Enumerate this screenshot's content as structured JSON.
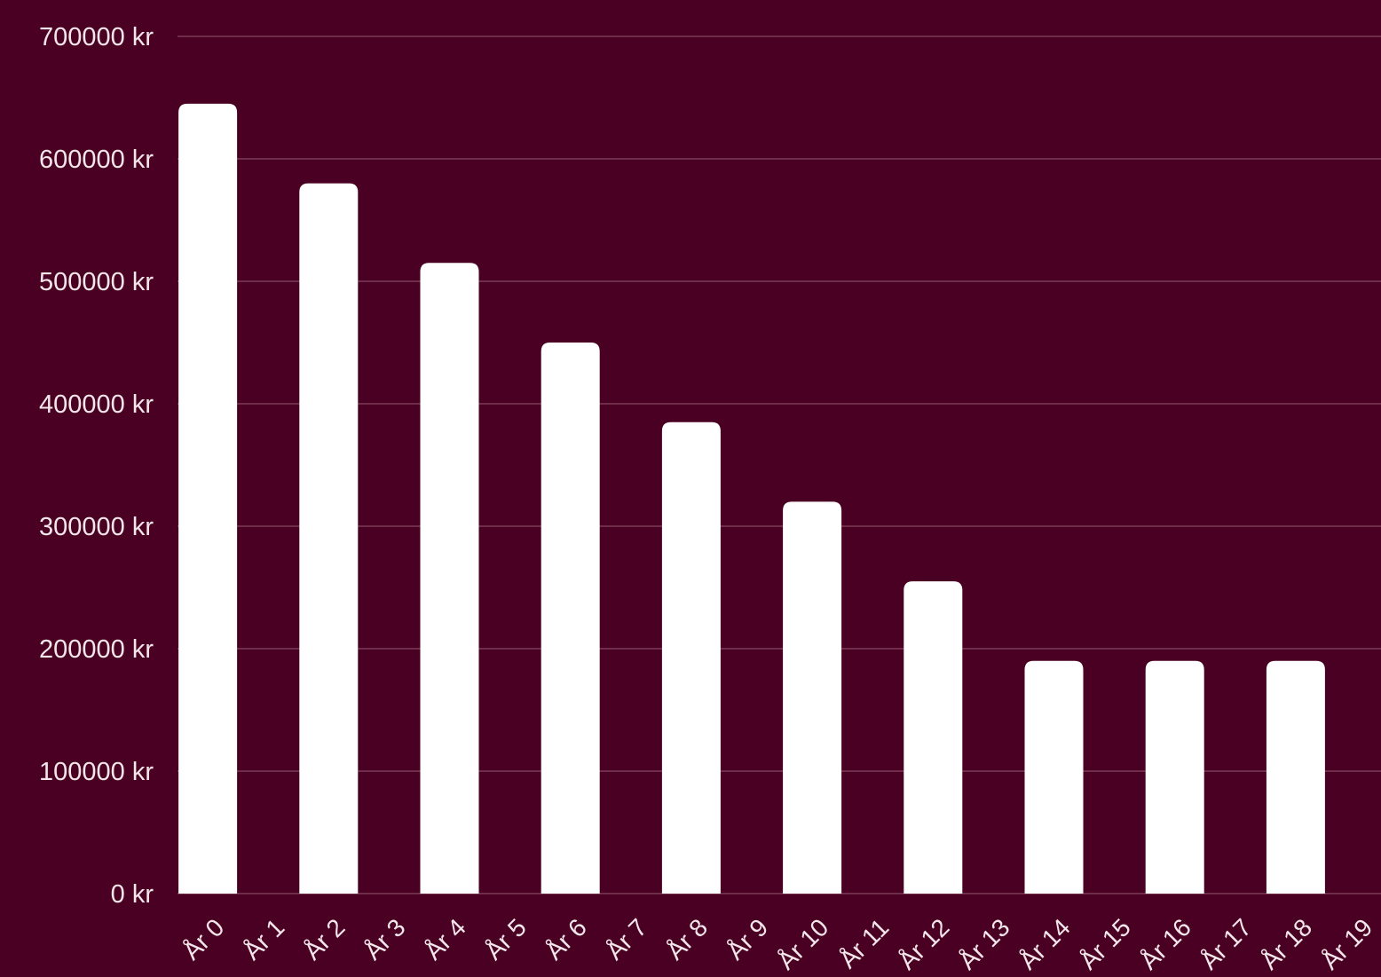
{
  "colors": {
    "background": "#4a0022",
    "bar": "#ffffff",
    "grid": "#7a3a55",
    "text": "#f2e6ea"
  },
  "chart_data": {
    "type": "bar",
    "title": "",
    "xlabel": "",
    "ylabel": "",
    "grid": true,
    "ylim": [
      0,
      700000
    ],
    "y_ticks": [
      {
        "value": 0,
        "label": "0 kr"
      },
      {
        "value": 100000,
        "label": "100000 kr"
      },
      {
        "value": 200000,
        "label": "200000 kr"
      },
      {
        "value": 300000,
        "label": "300000 kr"
      },
      {
        "value": 400000,
        "label": "400000 kr"
      },
      {
        "value": 500000,
        "label": "500000 kr"
      },
      {
        "value": 600000,
        "label": "600000 kr"
      },
      {
        "value": 700000,
        "label": "700000 kr"
      }
    ],
    "categories": [
      "År 0",
      "År 1",
      "År 2",
      "År 3",
      "År 4",
      "År 5",
      "År 6",
      "År 7",
      "År 8",
      "År 9",
      "År 10",
      "År 11",
      "År 12",
      "År 13",
      "År 14",
      "År 15",
      "År 16",
      "År 17",
      "År 18",
      "År 19"
    ],
    "values": [
      645000,
      null,
      580000,
      null,
      515000,
      null,
      450000,
      null,
      385000,
      null,
      320000,
      null,
      255000,
      null,
      190000,
      null,
      190000,
      null,
      190000,
      null
    ]
  }
}
